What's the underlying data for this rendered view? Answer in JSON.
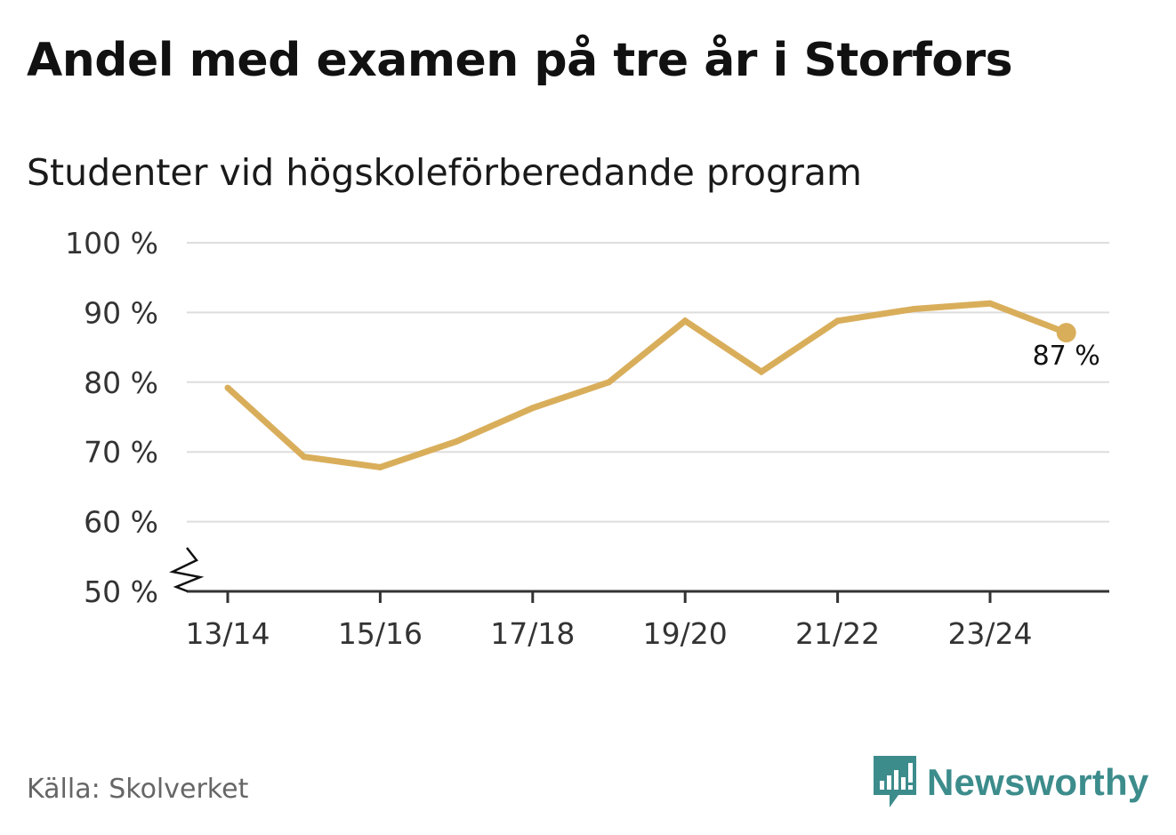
{
  "header": {
    "title": "Andel med examen på tre år i Storfors",
    "subtitle": "Studenter vid högskoleförberedande program"
  },
  "footer": {
    "source": "Källa: Skolverket",
    "brand": "Newsworthy"
  },
  "colors": {
    "line": "#d9ae5b",
    "grid": "#dddddd",
    "axis": "#333333",
    "brand": "#3d8c8c"
  },
  "chart_data": {
    "type": "line",
    "title": "Andel med examen på tre år i Storfors",
    "subtitle": "Studenter vid högskoleförberedande program",
    "xlabel": "",
    "ylabel": "",
    "ylim": [
      50,
      100
    ],
    "y_axis_break": true,
    "yticks": [
      50,
      60,
      70,
      80,
      90,
      100
    ],
    "ytick_labels": [
      "50 %",
      "60 %",
      "70 %",
      "80 %",
      "90 %",
      "100 %"
    ],
    "x": [
      "13/14",
      "14/15",
      "15/16",
      "16/17",
      "17/18",
      "18/19",
      "19/20",
      "20/21",
      "21/22",
      "22/23",
      "23/24",
      "24/25"
    ],
    "xtick_labels": [
      "13/14",
      "15/16",
      "17/18",
      "19/20",
      "21/22",
      "23/24"
    ],
    "series": [
      {
        "name": "Andel med examen på tre år",
        "values": [
          79.2,
          69.3,
          67.8,
          71.5,
          76.3,
          80.0,
          88.8,
          81.5,
          88.8,
          90.5,
          91.3,
          87.1
        ]
      }
    ],
    "last_value_label": "87 %",
    "grid": true
  }
}
